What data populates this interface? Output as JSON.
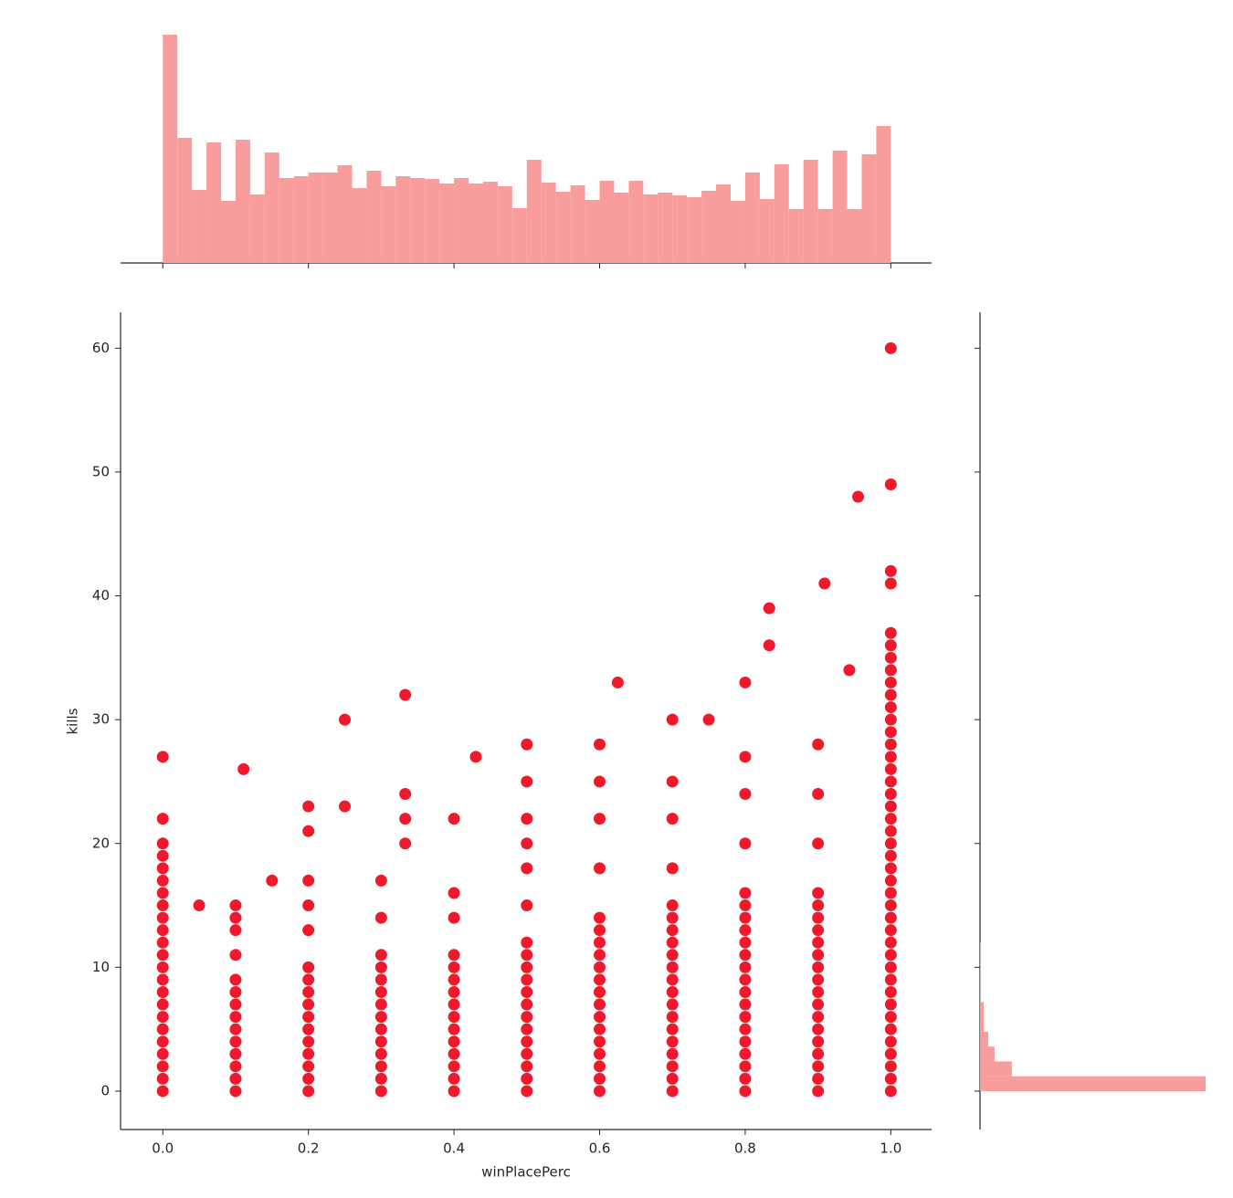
{
  "chart_data": [
    {
      "type": "histogram",
      "orientation": "vertical",
      "color": "#f89c9c",
      "bins": [
        0,
        0.02,
        0.04,
        0.06,
        0.08,
        0.1,
        0.12,
        0.14,
        0.16,
        0.18,
        0.2,
        0.22,
        0.24,
        0.26,
        0.28,
        0.3,
        0.32,
        0.34,
        0.36,
        0.38,
        0.4,
        0.42,
        0.44,
        0.46,
        0.48,
        0.5,
        0.52,
        0.54,
        0.56,
        0.58,
        0.6,
        0.62,
        0.64,
        0.66,
        0.68,
        0.7,
        0.72,
        0.74,
        0.76,
        0.78,
        0.8,
        0.82,
        0.84,
        0.86,
        0.88,
        0.9,
        0.92,
        0.94,
        0.96,
        0.98,
        1
      ],
      "values": [
        250,
        137,
        80,
        132,
        68,
        135,
        75,
        121,
        93,
        95,
        99,
        99,
        107,
        82,
        101,
        84,
        95,
        93,
        92,
        87,
        93,
        87,
        89,
        84,
        60,
        113,
        88,
        78,
        85,
        69,
        90,
        77,
        90,
        75,
        77,
        74,
        72,
        79,
        86,
        68,
        99,
        70,
        108,
        59,
        113,
        59,
        123,
        59,
        119,
        150
      ],
      "xlim": [
        -0.058,
        1.056
      ],
      "ylim": [
        0,
        262
      ]
    },
    {
      "type": "scatter",
      "color": "#f0192c",
      "xlabel": "winPlacePerc",
      "ylabel": "kills",
      "x": [
        0,
        0,
        0,
        0,
        0,
        0,
        0,
        0,
        0,
        0,
        0,
        0,
        0,
        0,
        0,
        0,
        0,
        0,
        0,
        0,
        0,
        0,
        0,
        0.1,
        0.1,
        0.1,
        0.1,
        0.1,
        0.1,
        0.1,
        0.1,
        0.1,
        0.1,
        0.1,
        0.1,
        0.1,
        0.1,
        0.111,
        0.2,
        0.2,
        0.2,
        0.2,
        0.2,
        0.2,
        0.2,
        0.2,
        0.2,
        0.2,
        0.2,
        0.2,
        0.2,
        0.2,
        0.2,
        0.2,
        0.3,
        0.3,
        0.3,
        0.3,
        0.3,
        0.3,
        0.3,
        0.3,
        0.3,
        0.3,
        0.3,
        0.3,
        0.3,
        0.3,
        0.333,
        0.333,
        0.333,
        0.333,
        0.4,
        0.4,
        0.4,
        0.4,
        0.4,
        0.4,
        0.4,
        0.4,
        0.4,
        0.4,
        0.4,
        0.4,
        0.4,
        0.4,
        0.4,
        0.5,
        0.5,
        0.5,
        0.5,
        0.5,
        0.5,
        0.5,
        0.5,
        0.5,
        0.5,
        0.5,
        0.5,
        0.5,
        0.5,
        0.5,
        0.5,
        0.5,
        0.5,
        0.5,
        0.6,
        0.6,
        0.6,
        0.6,
        0.6,
        0.6,
        0.6,
        0.6,
        0.6,
        0.6,
        0.6,
        0.6,
        0.6,
        0.6,
        0.6,
        0.6,
        0.6,
        0.6,
        0.6,
        0.7,
        0.7,
        0.7,
        0.7,
        0.7,
        0.7,
        0.7,
        0.7,
        0.7,
        0.7,
        0.7,
        0.7,
        0.7,
        0.7,
        0.7,
        0.7,
        0.7,
        0.7,
        0.7,
        0.7,
        0.8,
        0.8,
        0.8,
        0.8,
        0.8,
        0.8,
        0.8,
        0.8,
        0.8,
        0.8,
        0.8,
        0.8,
        0.8,
        0.8,
        0.8,
        0.8,
        0.8,
        0.8,
        0.8,
        0.8,
        0.8,
        0.9,
        0.9,
        0.9,
        0.9,
        0.9,
        0.9,
        0.9,
        0.9,
        0.9,
        0.9,
        0.9,
        0.9,
        0.9,
        0.9,
        0.9,
        0.9,
        0.9,
        0.9,
        0.9,
        0.9,
        1,
        1,
        1,
        1,
        1,
        1,
        1,
        1,
        1,
        1,
        1,
        1,
        1,
        1,
        1,
        1,
        1,
        1,
        1,
        1,
        1,
        1,
        1,
        1,
        1,
        1,
        1,
        1,
        1,
        1,
        1,
        1,
        1,
        1,
        1,
        1,
        1,
        1,
        1,
        1,
        1,
        1,
        0.05,
        0.15,
        0.25,
        0.25,
        0.43,
        0.625,
        0.75,
        0.833,
        0.833,
        0.909,
        0.943,
        0.955
      ],
      "values": [
        0,
        1,
        2,
        3,
        4,
        5,
        6,
        7,
        8,
        9,
        10,
        11,
        12,
        13,
        14,
        15,
        16,
        17,
        18,
        19,
        20,
        22,
        27,
        0,
        1,
        2,
        3,
        4,
        5,
        6,
        7,
        8,
        9,
        11,
        13,
        14,
        15,
        26,
        0,
        1,
        2,
        3,
        4,
        5,
        6,
        7,
        8,
        9,
        10,
        13,
        15,
        17,
        21,
        23,
        0,
        1,
        2,
        3,
        4,
        5,
        6,
        7,
        8,
        9,
        10,
        11,
        14,
        17,
        20,
        22,
        24,
        32,
        0,
        1,
        2,
        3,
        4,
        5,
        6,
        7,
        8,
        9,
        10,
        11,
        14,
        16,
        22,
        0,
        1,
        2,
        3,
        4,
        5,
        6,
        7,
        8,
        9,
        10,
        11,
        12,
        15,
        18,
        20,
        22,
        25,
        28,
        0,
        1,
        2,
        3,
        4,
        5,
        6,
        7,
        8,
        9,
        10,
        11,
        12,
        13,
        14,
        18,
        22,
        25,
        28,
        0,
        1,
        2,
        3,
        4,
        5,
        6,
        7,
        8,
        9,
        10,
        11,
        12,
        13,
        14,
        15,
        18,
        22,
        25,
        30,
        0,
        1,
        2,
        3,
        4,
        5,
        6,
        7,
        8,
        9,
        10,
        11,
        12,
        13,
        14,
        15,
        16,
        20,
        24,
        27,
        33,
        0,
        1,
        2,
        3,
        4,
        5,
        6,
        7,
        8,
        9,
        10,
        11,
        12,
        13,
        14,
        15,
        16,
        20,
        24,
        28,
        0,
        1,
        2,
        3,
        4,
        5,
        6,
        7,
        8,
        9,
        10,
        11,
        12,
        13,
        14,
        15,
        16,
        17,
        18,
        19,
        20,
        21,
        22,
        23,
        24,
        25,
        26,
        27,
        28,
        29,
        30,
        31,
        32,
        33,
        34,
        35,
        36,
        37,
        41,
        42,
        49,
        60,
        15,
        17,
        23,
        30,
        27,
        33,
        30,
        36,
        39,
        41,
        34,
        48
      ],
      "xlim": [
        -0.058,
        1.056
      ],
      "ylim": [
        -3.1,
        62.9
      ],
      "xticks": [
        {
          "value": 0,
          "label": "0.0"
        },
        0.2,
        0.4,
        0.6,
        0.8,
        {
          "value": 1,
          "label": "1.0"
        }
      ],
      "yticks": [
        0,
        10,
        20,
        30,
        40,
        50,
        60
      ]
    },
    {
      "type": "histogram",
      "orientation": "horizontal",
      "color": "#f89c9c",
      "bins": [
        0,
        1.2,
        2.4,
        3.6,
        4.8,
        6,
        7.2,
        8.4,
        9.6,
        10.8,
        12,
        13.2,
        14.4,
        15.6,
        16.8,
        18,
        19.2,
        20.4,
        21.6,
        22.8,
        24,
        25.2,
        26.4,
        27.6,
        28.8,
        30,
        31.2,
        32.4,
        33.6,
        34.8,
        36,
        37.2,
        38.4,
        39.6,
        40.8,
        42,
        43.2,
        44.4,
        45.6,
        46.8,
        48,
        49.2,
        50.4,
        51.6,
        52.8,
        54,
        55.2,
        56.4,
        57.6,
        58.8,
        60
      ],
      "values": [
        248,
        35,
        16,
        9,
        4,
        4,
        1,
        1,
        1,
        1,
        0,
        0,
        0,
        0,
        0,
        0,
        0,
        0,
        0,
        0,
        0,
        0,
        0,
        0,
        0,
        0,
        0,
        0,
        0,
        0,
        0,
        0,
        0,
        0,
        0,
        0,
        0,
        0,
        0,
        0,
        0,
        0,
        0,
        0,
        0,
        0,
        0,
        0,
        0,
        0
      ],
      "xlim": [
        0,
        250
      ],
      "ylim": [
        -3.1,
        62.9
      ]
    }
  ]
}
